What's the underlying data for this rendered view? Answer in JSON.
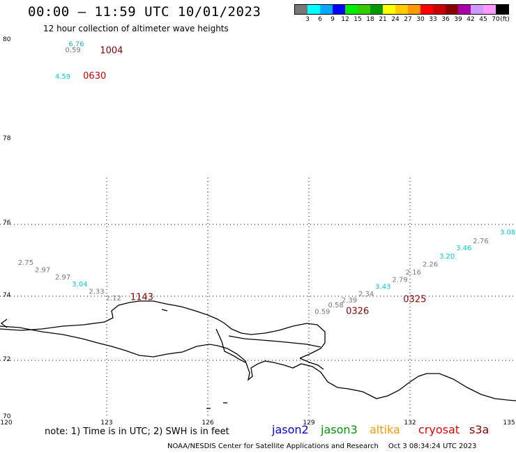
{
  "header": {
    "title": "00:00 – 11:59 UTC 10/01/2023",
    "subtitle": "12 hour collection of altimeter wave heights"
  },
  "legend": {
    "colors": [
      "#777777",
      "#00ffff",
      "#00aaff",
      "#0000ff",
      "#00ee00",
      "#33cc00",
      "#009900",
      "#ffff00",
      "#ffcc00",
      "#ff9900",
      "#ff0000",
      "#cc0000",
      "#880000",
      "#aa00aa",
      "#cc99ff",
      "#ff99ff",
      "#000000"
    ],
    "labels": [
      "3",
      "6",
      "9",
      "12",
      "15",
      "18",
      "21",
      "24",
      "27",
      "30",
      "33",
      "36",
      "39",
      "42",
      "45",
      "70",
      "(ft)"
    ]
  },
  "axes": {
    "y_ticks": [
      "80",
      "78",
      "76",
      "74",
      "72",
      "70"
    ],
    "x_ticks": [
      "120",
      "123",
      "126",
      "129",
      "132",
      "135"
    ]
  },
  "chart_data": {
    "type": "scatter",
    "x_range": [
      120,
      135
    ],
    "y_range": [
      70,
      80
    ],
    "time_labels": [
      {
        "text": "1004",
        "lon": 122.8,
        "lat": 79.74,
        "color": "#880000"
      },
      {
        "text": "0630",
        "lon": 122.3,
        "lat": 79.22,
        "color": "#cc0000"
      },
      {
        "text": "1143",
        "lon": 123.7,
        "lat": 73.88,
        "color": "#880000"
      },
      {
        "text": "0325",
        "lon": 131.8,
        "lat": 73.82,
        "color": "#880000"
      },
      {
        "text": "0326",
        "lon": 130.1,
        "lat": 73.45,
        "color": "#880000"
      }
    ],
    "wave_heights": [
      {
        "text": "6.76",
        "lon": 122.1,
        "lat": 79.88,
        "color": "#22aacc"
      },
      {
        "text": "0.59",
        "lon": 122.0,
        "lat": 79.76,
        "color": "#777777"
      },
      {
        "text": "4.59",
        "lon": 121.7,
        "lat": 79.22,
        "color": "#00cccc"
      },
      {
        "text": "2.75",
        "lon": 120.6,
        "lat": 74.87,
        "color": "#777777"
      },
      {
        "text": "2.97",
        "lon": 121.1,
        "lat": 74.67,
        "color": "#777777"
      },
      {
        "text": "2.97",
        "lon": 121.7,
        "lat": 74.47,
        "color": "#777777"
      },
      {
        "text": "3.04",
        "lon": 122.2,
        "lat": 74.27,
        "color": "#00cccc"
      },
      {
        "text": "2.33",
        "lon": 122.7,
        "lat": 74.07,
        "color": "#777777"
      },
      {
        "text": "2.12",
        "lon": 123.2,
        "lat": 73.87,
        "color": "#777777"
      },
      {
        "text": "0.59",
        "lon": 129.4,
        "lat": 73.45,
        "color": "#777777"
      },
      {
        "text": "0.58",
        "lon": 129.8,
        "lat": 73.65,
        "color": "#777777"
      },
      {
        "text": "2.39",
        "lon": 130.2,
        "lat": 73.8,
        "color": "#777777"
      },
      {
        "text": "2.34",
        "lon": 130.7,
        "lat": 74.0,
        "color": "#777777"
      },
      {
        "text": "3.43",
        "lon": 131.2,
        "lat": 74.2,
        "color": "#00cccc"
      },
      {
        "text": "2.79",
        "lon": 131.7,
        "lat": 74.4,
        "color": "#777777"
      },
      {
        "text": "2.16",
        "lon": 132.1,
        "lat": 74.6,
        "color": "#777777"
      },
      {
        "text": "2.26",
        "lon": 132.6,
        "lat": 74.83,
        "color": "#777777"
      },
      {
        "text": "3.20",
        "lon": 133.1,
        "lat": 75.05,
        "color": "#00cccc"
      },
      {
        "text": "3.46",
        "lon": 133.6,
        "lat": 75.28,
        "color": "#00cccc"
      },
      {
        "text": "2.76",
        "lon": 134.1,
        "lat": 75.48,
        "color": "#777777"
      },
      {
        "text": "3.08",
        "lon": 134.9,
        "lat": 75.72,
        "color": "#00cccc"
      }
    ]
  },
  "footer": {
    "note": "note:  1) Time is in UTC;  2) SWH is in feet",
    "satellites": [
      {
        "name": "jason2",
        "color": "#0000ee"
      },
      {
        "name": "jason3",
        "color": "#009900"
      },
      {
        "name": "altika",
        "color": "#ff9900"
      },
      {
        "name": "cryosat",
        "color": "#ee0000"
      },
      {
        "name": "s3a",
        "color": "#880000"
      }
    ],
    "credit": "NOAA/NESDIS Center for Satellite Applications and Research",
    "date": "Oct  3 08:34:24 UTC 2023"
  }
}
